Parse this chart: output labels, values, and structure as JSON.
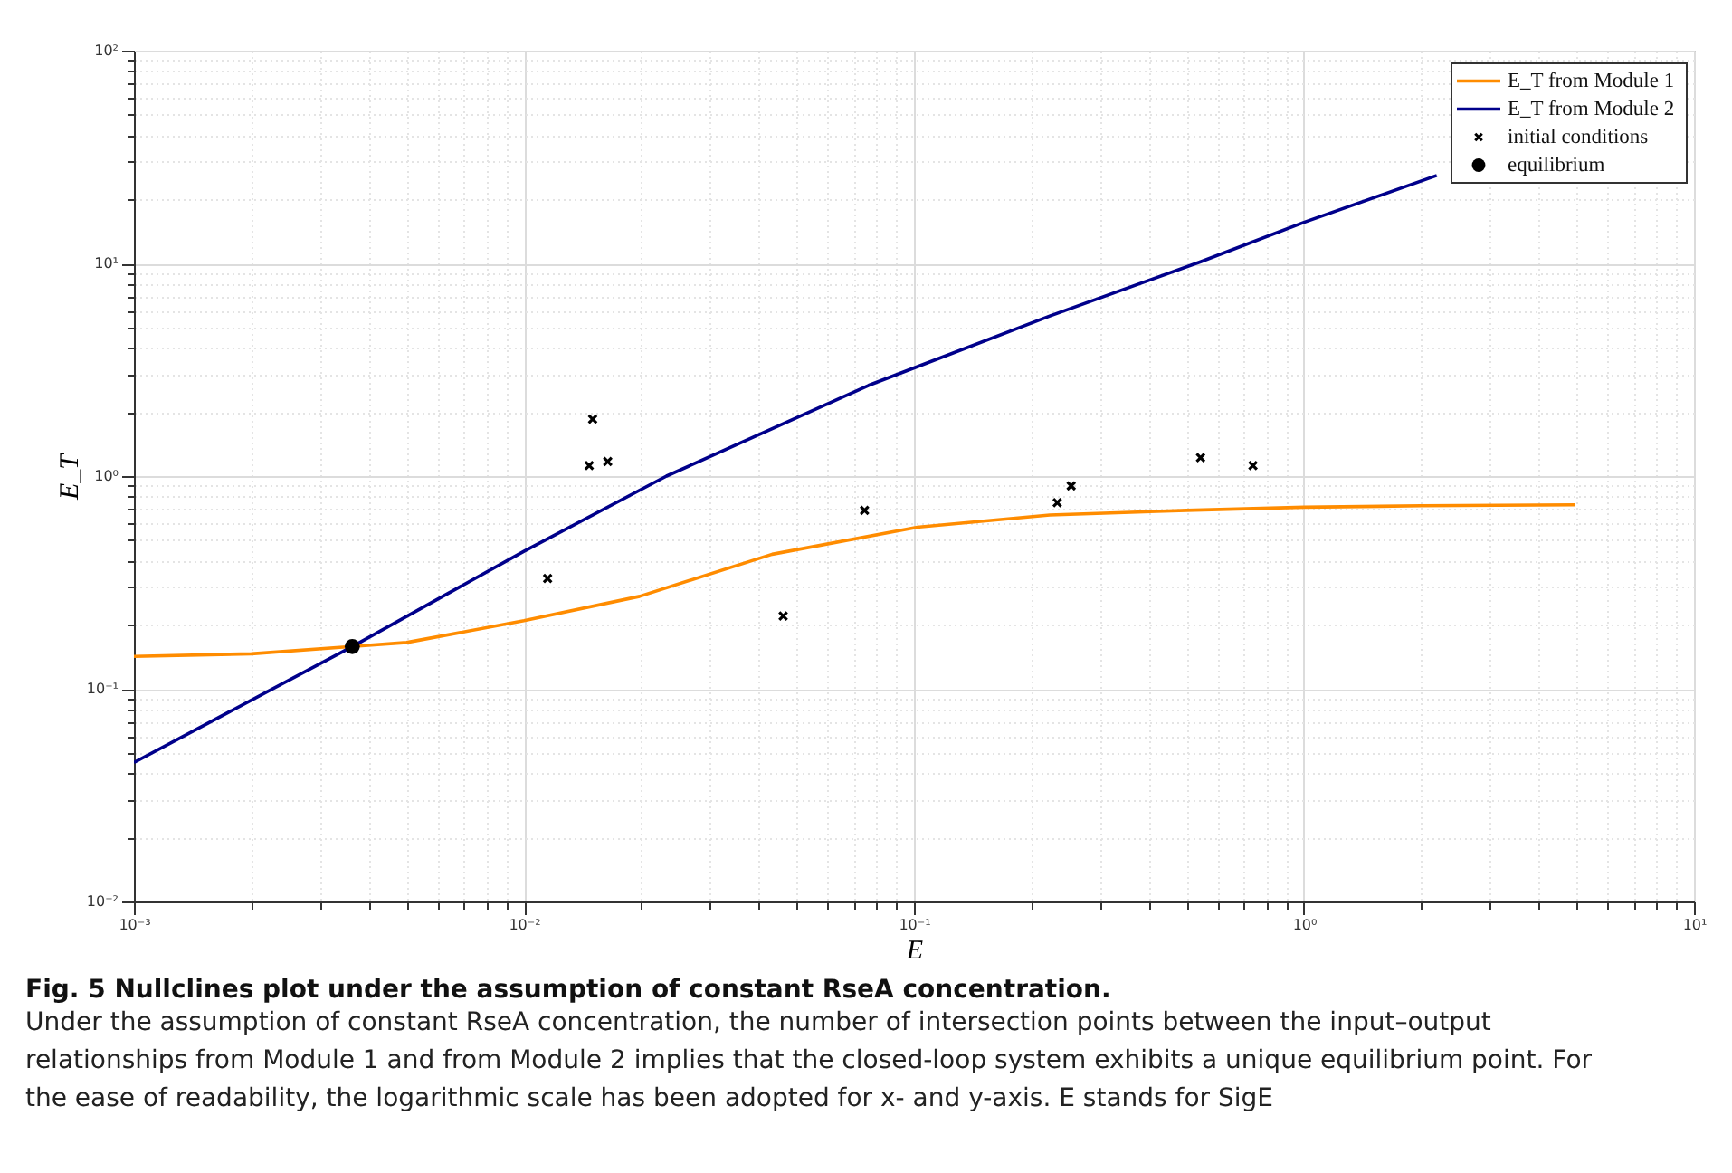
{
  "chart_data": {
    "type": "line",
    "title": "Fig. 5  Nullclines plot under the assumption of constant RseA concentration.",
    "annotations": [
      "Under the assumption of constant RseA concentration, the number of intersection points between the input–output relationships from Module 1 and from Module 2 implies that the closed-loop system exhibits a unique equilibrium point. For the ease of readability, the logarithmic scale has been adopted for x- and y-axis. E stands for SigE"
    ],
    "xlabel": "E",
    "ylabel": "E_T",
    "log": "xy",
    "grid": true,
    "legend": "top right",
    "xlim": [
      0.001,
      10
    ],
    "ylim": [
      0.01,
      100
    ],
    "xticks": [
      {
        "value": 0.001,
        "label": "10⁻³"
      },
      {
        "value": 0.002,
        "label": null
      },
      {
        "value": 0.003,
        "label": null
      },
      {
        "value": 0.004,
        "label": null
      },
      {
        "value": 0.005,
        "label": null
      },
      {
        "value": 0.006,
        "label": null
      },
      {
        "value": 0.007,
        "label": null
      },
      {
        "value": 0.008,
        "label": null
      },
      {
        "value": 0.009,
        "label": null
      },
      {
        "value": 0.01,
        "label": "10⁻²"
      },
      {
        "value": 0.02,
        "label": null
      },
      {
        "value": 0.03,
        "label": null
      },
      {
        "value": 0.04,
        "label": null
      },
      {
        "value": 0.05,
        "label": null
      },
      {
        "value": 0.06,
        "label": null
      },
      {
        "value": 0.07,
        "label": null
      },
      {
        "value": 0.08,
        "label": null
      },
      {
        "value": 0.09,
        "label": null
      },
      {
        "value": 0.1,
        "label": "10⁻¹"
      },
      {
        "value": 0.2,
        "label": null
      },
      {
        "value": 0.3,
        "label": null
      },
      {
        "value": 0.4,
        "label": null
      },
      {
        "value": 0.5,
        "label": null
      },
      {
        "value": 0.6,
        "label": null
      },
      {
        "value": 0.7,
        "label": null
      },
      {
        "value": 0.8,
        "label": null
      },
      {
        "value": 0.9,
        "label": null
      },
      {
        "value": 1,
        "label": "10⁰"
      },
      {
        "value": 2,
        "label": null
      },
      {
        "value": 3,
        "label": null
      },
      {
        "value": 4,
        "label": null
      },
      {
        "value": 5,
        "label": null
      },
      {
        "value": 6,
        "label": null
      },
      {
        "value": 7,
        "label": null
      },
      {
        "value": 8,
        "label": null
      },
      {
        "value": 9,
        "label": null
      },
      {
        "value": 10,
        "label": "10¹"
      }
    ],
    "yticks": [
      {
        "value": 0.01,
        "label": "10⁻²"
      },
      {
        "value": 0.02,
        "label": null
      },
      {
        "value": 0.03,
        "label": null
      },
      {
        "value": 0.04,
        "label": null
      },
      {
        "value": 0.05,
        "label": null
      },
      {
        "value": 0.06,
        "label": null
      },
      {
        "value": 0.07,
        "label": null
      },
      {
        "value": 0.08,
        "label": null
      },
      {
        "value": 0.09,
        "label": null
      },
      {
        "value": 0.1,
        "label": "10⁻¹"
      },
      {
        "value": 0.2,
        "label": null
      },
      {
        "value": 0.3,
        "label": null
      },
      {
        "value": 0.4,
        "label": null
      },
      {
        "value": 0.5,
        "label": null
      },
      {
        "value": 0.6,
        "label": null
      },
      {
        "value": 0.7,
        "label": null
      },
      {
        "value": 0.8,
        "label": null
      },
      {
        "value": 0.9,
        "label": null
      },
      {
        "value": 1,
        "label": "10⁰"
      },
      {
        "value": 2,
        "label": null
      },
      {
        "value": 3,
        "label": null
      },
      {
        "value": 4,
        "label": null
      },
      {
        "value": 5,
        "label": null
      },
      {
        "value": 6,
        "label": null
      },
      {
        "value": 7,
        "label": null
      },
      {
        "value": 8,
        "label": null
      },
      {
        "value": 9,
        "label": null
      },
      {
        "value": 10,
        "label": "10¹"
      },
      {
        "value": 20,
        "label": null
      },
      {
        "value": 30,
        "label": null
      },
      {
        "value": 40,
        "label": null
      },
      {
        "value": 50,
        "label": null
      },
      {
        "value": 60,
        "label": null
      },
      {
        "value": 70,
        "label": null
      },
      {
        "value": 80,
        "label": null
      },
      {
        "value": 90,
        "label": null
      },
      {
        "value": 100,
        "label": "10²"
      }
    ],
    "series": [
      {
        "name": "E_T from Module 1",
        "color": "#ff8c00",
        "x": [
          0.001,
          0.002,
          0.00363,
          0.005,
          0.01,
          0.0198,
          0.0433,
          0.102,
          0.223,
          0.5,
          1,
          2,
          4.94
        ],
        "values": [
          0.142,
          0.146,
          0.158,
          0.165,
          0.209,
          0.272,
          0.429,
          0.575,
          0.656,
          0.69,
          0.714,
          0.725,
          0.733
        ]
      },
      {
        "name": "E_T from Module 2",
        "color": "#00008b",
        "x": [
          0.001,
          0.00363,
          0.01,
          0.0232,
          0.0765,
          0.223,
          0.545,
          1,
          2.19
        ],
        "values": [
          0.045,
          0.158,
          0.443,
          1.0,
          2.67,
          5.66,
          10.2,
          15.6,
          25.9
        ]
      },
      {
        "name": "initial conditions",
        "type": "scatter",
        "marker": "cross",
        "color": "#000000",
        "x": [
          0.015,
          0.0147,
          0.0164,
          0.0115,
          0.0462,
          0.0747,
          0.233,
          0.253,
          0.543,
          0.74
        ],
        "values": [
          1.85,
          1.12,
          1.17,
          0.33,
          0.22,
          0.69,
          0.75,
          0.9,
          1.22,
          1.12
        ]
      },
      {
        "name": "equilibrium",
        "type": "scatter",
        "marker": "circle",
        "color": "#000000",
        "x": [
          0.00363
        ],
        "values": [
          0.158
        ]
      }
    ]
  }
}
